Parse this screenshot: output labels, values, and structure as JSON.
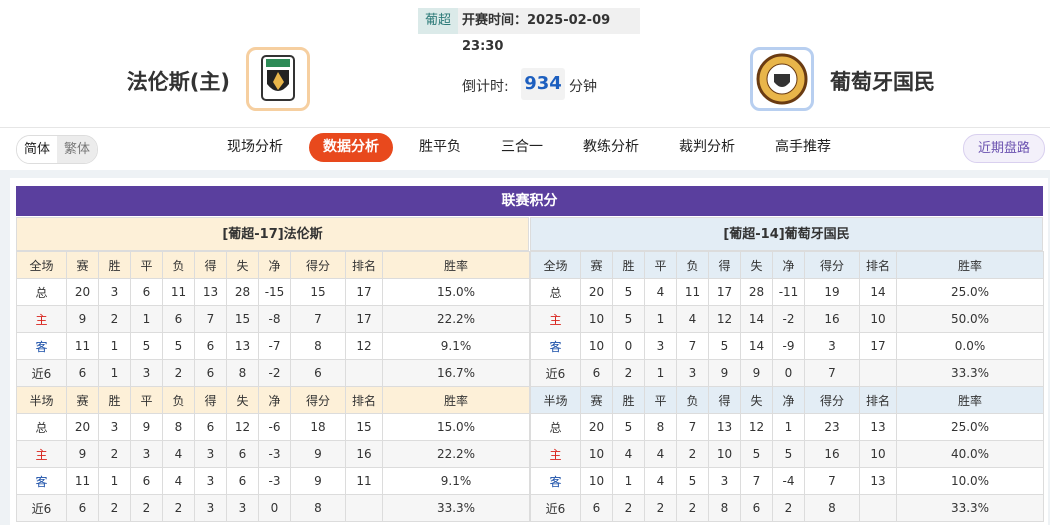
{
  "header": {
    "league": "葡超",
    "kickoff_label": "开赛时间：",
    "kickoff": "2025-02-09 23:30",
    "home": "法伦斯(主)",
    "away": "葡萄牙国民",
    "countdown_label": "倒计时:",
    "countdown": 934,
    "countdown_unit": "分钟"
  },
  "nav": {
    "languages": [
      "简体",
      "繁体"
    ],
    "active_language": 0,
    "tabs": [
      "现场分析",
      "数据分析",
      "胜平负",
      "三合一",
      "教练分析",
      "裁判分析",
      "高手推荐"
    ],
    "active_tab": 1,
    "recent": "近期盘路"
  },
  "standings": {
    "title": "联赛积分",
    "tables": [
      {
        "title": "[葡超-17]法伦斯",
        "full": {
          "header": [
            "全场",
            "赛",
            "胜",
            "平",
            "负",
            "得",
            "失",
            "净",
            "得分",
            "排名",
            "胜率"
          ],
          "rows": [
            [
              "总",
              20,
              3,
              6,
              11,
              13,
              28,
              -15,
              15,
              17,
              "15.0%"
            ],
            [
              "主",
              9,
              2,
              1,
              6,
              7,
              15,
              -8,
              7,
              17,
              "22.2%"
            ],
            [
              "客",
              11,
              1,
              5,
              5,
              6,
              13,
              -7,
              8,
              12,
              "9.1%"
            ],
            [
              "近6",
              6,
              1,
              3,
              2,
              6,
              8,
              -2,
              6,
              null,
              "16.7%"
            ]
          ]
        },
        "half": {
          "header": [
            "半场",
            "赛",
            "胜",
            "平",
            "负",
            "得",
            "失",
            "净",
            "得分",
            "排名",
            "胜率"
          ],
          "rows": [
            [
              "总",
              20,
              3,
              9,
              8,
              6,
              12,
              -6,
              18,
              15,
              "15.0%"
            ],
            [
              "主",
              9,
              2,
              3,
              4,
              3,
              6,
              -3,
              9,
              16,
              "22.2%"
            ],
            [
              "客",
              11,
              1,
              6,
              4,
              3,
              6,
              -3,
              9,
              11,
              "9.1%"
            ],
            [
              "近6",
              6,
              2,
              2,
              2,
              3,
              3,
              0,
              8,
              null,
              "33.3%"
            ]
          ]
        }
      },
      {
        "title": "[葡超-14]葡萄牙国民",
        "full": {
          "header": [
            "全场",
            "赛",
            "胜",
            "平",
            "负",
            "得",
            "失",
            "净",
            "得分",
            "排名",
            "胜率"
          ],
          "rows": [
            [
              "总",
              20,
              5,
              4,
              11,
              17,
              28,
              -11,
              19,
              14,
              "25.0%"
            ],
            [
              "主",
              10,
              5,
              1,
              4,
              12,
              14,
              -2,
              16,
              10,
              "50.0%"
            ],
            [
              "客",
              10,
              0,
              3,
              7,
              5,
              14,
              -9,
              3,
              17,
              "0.0%"
            ],
            [
              "近6",
              6,
              2,
              1,
              3,
              9,
              9,
              0,
              7,
              null,
              "33.3%"
            ]
          ]
        },
        "half": {
          "header": [
            "半场",
            "赛",
            "胜",
            "平",
            "负",
            "得",
            "失",
            "净",
            "得分",
            "排名",
            "胜率"
          ],
          "rows": [
            [
              "总",
              20,
              5,
              8,
              7,
              13,
              12,
              1,
              23,
              13,
              "25.0%"
            ],
            [
              "主",
              10,
              4,
              4,
              2,
              10,
              5,
              5,
              16,
              10,
              "40.0%"
            ],
            [
              "客",
              10,
              1,
              4,
              5,
              3,
              7,
              -4,
              7,
              13,
              "10.0%"
            ],
            [
              "近6",
              6,
              2,
              2,
              2,
              8,
              6,
              2,
              8,
              null,
              "33.3%"
            ]
          ]
        }
      }
    ]
  }
}
